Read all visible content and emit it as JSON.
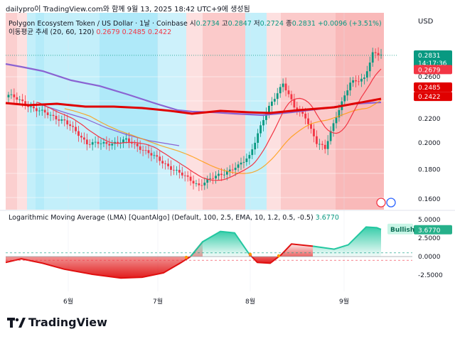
{
  "credit": "dailypro이 TradingView.com와 함께 9월 13, 2025 18:42 UTC+9에 생성됨",
  "currency": "USD",
  "legend": {
    "symbol": "Polygon Ecosystem Token / US Dollar · 1날 · Coinbase",
    "open_label": "시",
    "open": "0.2734",
    "high_label": "고",
    "high": "0.2847",
    "low_label": "저",
    "low": "0.2724",
    "close_label": "종",
    "close": "0.2831",
    "change": "+0.0096 (+3.51%)",
    "ma_name": "이동평균 추세 (20, 60, 120)",
    "ma_values": [
      "0.2679",
      "0.2485",
      "0.2422"
    ]
  },
  "indicator": {
    "name": "Logarithmic Moving Average (LMA) [QuantAlgo] (Default, 100, 2.5, EMA, 10, 1.2, 0.5, -0.5)",
    "value": "3.6770",
    "signal_label": "Bullish"
  },
  "price_tag": {
    "value": "0.2831",
    "countdown": "14:17:36"
  },
  "brand": "TradingView",
  "colors": {
    "up": "#089981",
    "down": "#f23645",
    "ma20": "#f23645",
    "ma60": "#ff9800",
    "ma120": "#e00000",
    "bull_bg": "#9be4f7",
    "bear_bg": "#f8a7a7"
  },
  "chart_data": {
    "type": "candlestick",
    "x": [
      "5월 초",
      "6월",
      "7월",
      "8월",
      "9월 12일"
    ],
    "xticks": [
      "6월",
      "7월",
      "8월",
      "9월"
    ],
    "price_axis": {
      "ticks": [
        "0.2600",
        "0.2200",
        "0.2000",
        "0.1800",
        "0.1600"
      ],
      "scale": "log"
    },
    "indicator_axis": {
      "ticks": [
        "5.0000",
        "2.5000",
        "0.0000",
        "-2.5000"
      ]
    },
    "series": [
      {
        "name": "이동평균 20",
        "last": 0.2679
      },
      {
        "name": "이동평균 60",
        "last": 0.2485
      },
      {
        "name": "이동평균 120",
        "last": 0.2422
      }
    ],
    "last_close": 0.2831,
    "lma_last": 3.677
  }
}
